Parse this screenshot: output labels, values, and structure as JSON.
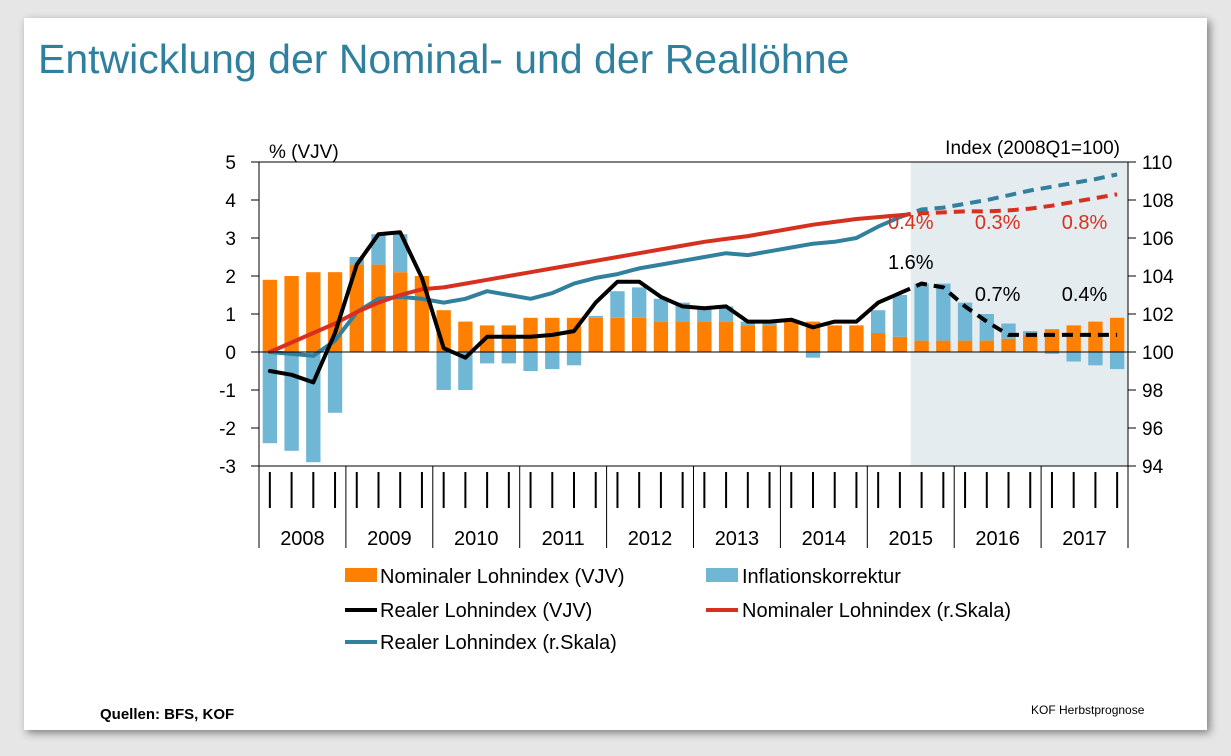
{
  "slide": {
    "title": "Entwicklung der Nominal- und der Reallöhne",
    "source": "Quellen: BFS, KOF",
    "footer": "KOF Herbstprognose"
  },
  "colors": {
    "nominal_bar": "#ff7f00",
    "inflation_bar": "#6fb7d5",
    "real_vjv_line": "#000000",
    "nominal_index_line": "#d7301f",
    "real_index_line": "#31809e",
    "forecast_shade": "#e4ecf0",
    "annotation_red": "#d7301f",
    "annotation_black": "#000000"
  },
  "chart_data": {
    "type": "bar",
    "stacked": true,
    "frequency": "quarterly",
    "years": [
      "2008",
      "2009",
      "2010",
      "2011",
      "2012",
      "2013",
      "2014",
      "2015",
      "2016",
      "2017"
    ],
    "quarters": [
      "2008Q1",
      "2008Q2",
      "2008Q3",
      "2008Q4",
      "2009Q1",
      "2009Q2",
      "2009Q3",
      "2009Q4",
      "2010Q1",
      "2010Q2",
      "2010Q3",
      "2010Q4",
      "2011Q1",
      "2011Q2",
      "2011Q3",
      "2011Q4",
      "2012Q1",
      "2012Q2",
      "2012Q3",
      "2012Q4",
      "2013Q1",
      "2013Q2",
      "2013Q3",
      "2013Q4",
      "2014Q1",
      "2014Q2",
      "2014Q3",
      "2014Q4",
      "2015Q1",
      "2015Q2",
      "2015Q3",
      "2015Q4",
      "2016Q1",
      "2016Q2",
      "2016Q3",
      "2016Q4",
      "2017Q1",
      "2017Q2",
      "2017Q3",
      "2017Q4"
    ],
    "left_axis": {
      "label": "% (VJV)",
      "min": -3,
      "max": 5,
      "ticks": [
        5,
        4,
        3,
        2,
        1,
        0,
        -1,
        -2,
        -3
      ]
    },
    "right_axis": {
      "label": "Index (2008Q1=100)",
      "min": 94,
      "max": 110,
      "ticks": [
        110,
        108,
        106,
        104,
        102,
        100,
        98,
        96,
        94
      ]
    },
    "forecast_start": "2015Q3",
    "grid": false,
    "legend_position": "bottom",
    "legend": {
      "nominal_bar": "Nominaler Lohnindex (VJV)",
      "inflation_bar": "Inflationskorrektur",
      "real_vjv_line": "Realer Lohnindex (VJV)",
      "nominal_index_line": "Nominaler Lohnindex (r.Skala)",
      "real_index_line": "Realer Lohnindex (r.Skala)"
    },
    "series": [
      {
        "name": "Nominaler Lohnindex (VJV)",
        "kind": "bar",
        "axis": "left",
        "values": [
          1.9,
          2.0,
          2.1,
          2.1,
          2.3,
          2.3,
          2.1,
          2.0,
          1.1,
          0.8,
          0.7,
          0.7,
          0.9,
          0.9,
          0.9,
          0.9,
          0.9,
          0.9,
          0.8,
          0.8,
          0.8,
          0.8,
          0.7,
          0.7,
          0.8,
          0.8,
          0.7,
          0.7,
          0.5,
          0.4,
          0.3,
          0.3,
          0.3,
          0.3,
          0.35,
          0.45,
          0.6,
          0.7,
          0.8,
          0.9
        ]
      },
      {
        "name": "Inflationskorrektur",
        "kind": "bar",
        "axis": "left",
        "values": [
          -2.4,
          -2.6,
          -2.9,
          -1.6,
          0.2,
          0.8,
          1.0,
          0.0,
          -1.0,
          -1.0,
          -0.3,
          -0.3,
          -0.5,
          -0.45,
          -0.35,
          0.05,
          0.7,
          0.8,
          0.6,
          0.5,
          0.4,
          0.4,
          0.1,
          0.1,
          0.05,
          -0.15,
          0.0,
          0.0,
          0.6,
          1.1,
          1.5,
          1.5,
          1.0,
          0.7,
          0.4,
          0.1,
          -0.05,
          -0.25,
          -0.35,
          -0.45
        ]
      },
      {
        "name": "Realer Lohnindex (VJV)",
        "kind": "line",
        "axis": "left",
        "values": [
          -0.5,
          -0.6,
          -0.8,
          0.5,
          2.3,
          3.1,
          3.15,
          1.95,
          0.1,
          -0.15,
          0.4,
          0.4,
          0.4,
          0.45,
          0.55,
          1.3,
          1.85,
          1.85,
          1.45,
          1.2,
          1.15,
          1.2,
          0.8,
          0.8,
          0.85,
          0.65,
          0.8,
          0.8,
          1.3,
          1.55,
          1.8,
          1.7,
          1.2,
          0.8,
          0.45,
          0.45,
          0.45,
          0.45,
          0.45,
          0.45
        ]
      },
      {
        "name": "Nominaler Lohnindex (r.Skala)",
        "kind": "line",
        "axis": "right",
        "values": [
          100.0,
          100.5,
          101.0,
          101.5,
          102.1,
          102.6,
          103.0,
          103.3,
          103.4,
          103.6,
          103.8,
          104.0,
          104.2,
          104.4,
          104.6,
          104.8,
          105.0,
          105.2,
          105.4,
          105.6,
          105.8,
          105.95,
          106.1,
          106.3,
          106.5,
          106.7,
          106.85,
          107.0,
          107.1,
          107.2,
          107.3,
          107.35,
          107.4,
          107.4,
          107.45,
          107.55,
          107.7,
          107.9,
          108.1,
          108.3
        ]
      },
      {
        "name": "Realer Lohnindex (r.Skala)",
        "kind": "line",
        "axis": "right",
        "values": [
          100.0,
          99.9,
          99.8,
          100.6,
          102.1,
          102.8,
          102.9,
          102.8,
          102.6,
          102.8,
          103.2,
          103.0,
          102.8,
          103.1,
          103.6,
          103.9,
          104.1,
          104.4,
          104.6,
          104.8,
          105.0,
          105.2,
          105.1,
          105.3,
          105.5,
          105.7,
          105.8,
          106.0,
          106.6,
          107.1,
          107.5,
          107.6,
          107.8,
          108.0,
          108.25,
          108.5,
          108.7,
          108.9,
          109.1,
          109.35
        ]
      }
    ],
    "annotations": [
      {
        "text": "0.4%",
        "series": "Nominaler Lohnindex (r.Skala)",
        "year": "2015",
        "color": "red"
      },
      {
        "text": "0.3%",
        "series": "Nominaler Lohnindex (r.Skala)",
        "year": "2016",
        "color": "red"
      },
      {
        "text": "0.8%",
        "series": "Nominaler Lohnindex (r.Skala)",
        "year": "2017",
        "color": "red"
      },
      {
        "text": "1.6%",
        "series": "Realer Lohnindex (VJV)",
        "year": "2015",
        "color": "black"
      },
      {
        "text": "0.7%",
        "series": "Realer Lohnindex (VJV)",
        "year": "2016",
        "color": "black"
      },
      {
        "text": "0.4%",
        "series": "Realer Lohnindex (VJV)",
        "year": "2017",
        "color": "black"
      }
    ]
  }
}
